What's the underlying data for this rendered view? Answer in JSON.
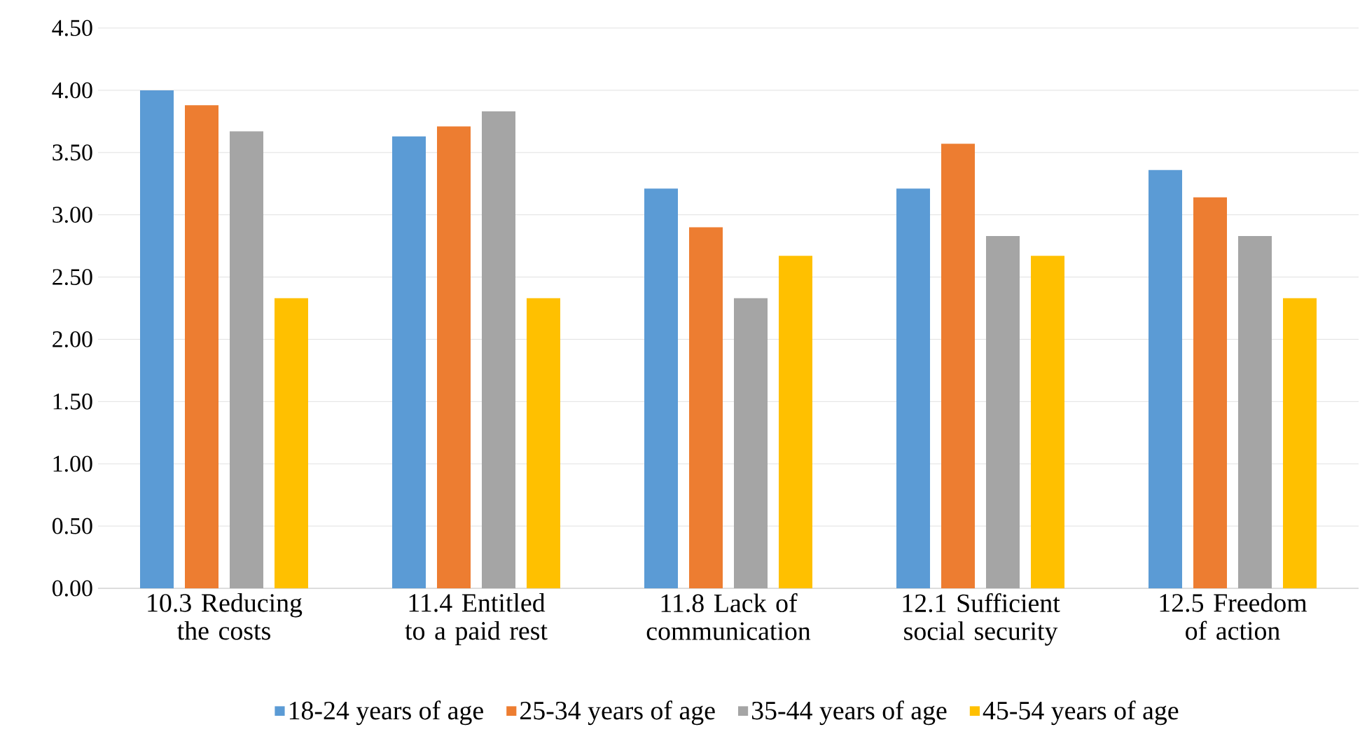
{
  "chart_data": {
    "type": "bar",
    "categories": [
      "10.3 Reducing the costs",
      "11.4 Entitled to a paid rest",
      "11.8 Lack of communication",
      "12.1 Sufficient social security",
      "12.5 Freedom of action"
    ],
    "series": [
      {
        "name": "18-24 years of age",
        "color": "#5b9bd5",
        "values": [
          4.0,
          3.63,
          3.21,
          3.21,
          3.36
        ]
      },
      {
        "name": "25-34 years of age",
        "color": "#ed7d31",
        "values": [
          3.88,
          3.71,
          2.9,
          3.57,
          3.14
        ]
      },
      {
        "name": "35-44 years of age",
        "color": "#a5a5a5",
        "values": [
          3.67,
          3.83,
          2.33,
          2.83,
          2.83
        ]
      },
      {
        "name": "45-54 years of age",
        "color": "#ffc000",
        "values": [
          2.33,
          2.33,
          2.67,
          2.67,
          2.33
        ]
      }
    ],
    "ylim": [
      0,
      4.5
    ],
    "yticks": [
      {
        "value": 0,
        "label": "0.00"
      },
      {
        "value": 0.5,
        "label": "0.50"
      },
      {
        "value": 1,
        "label": "1.00"
      },
      {
        "value": 1.5,
        "label": "1.50"
      },
      {
        "value": 2,
        "label": "2.00"
      },
      {
        "value": 2.5,
        "label": "2.50"
      },
      {
        "value": 3,
        "label": "3.00"
      },
      {
        "value": 3.5,
        "label": "3.50"
      },
      {
        "value": 4,
        "label": "4.00"
      },
      {
        "value": 4.5,
        "label": "4.50"
      }
    ],
    "grid": "y",
    "legend": "bottom"
  }
}
